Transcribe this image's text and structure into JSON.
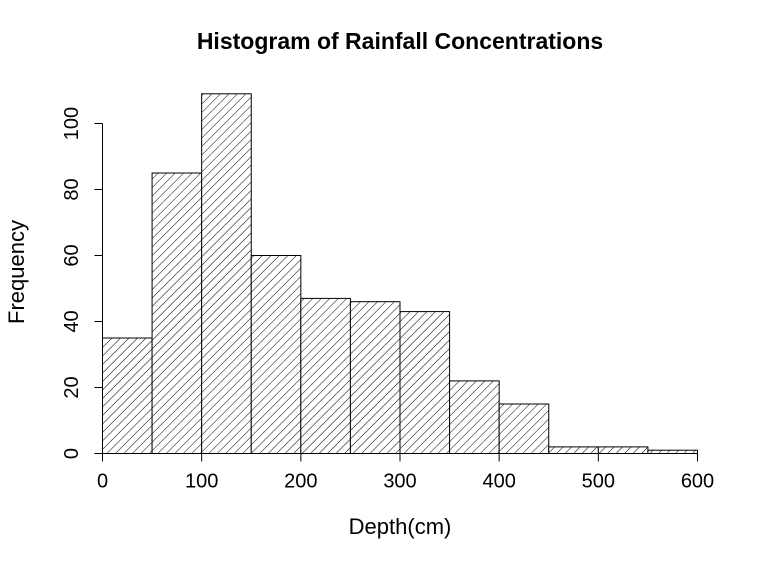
{
  "chart_data": {
    "type": "bar",
    "title": "Histogram of Rainfall Concentrations",
    "xlabel": "Depth(cm)",
    "ylabel": "Frequency",
    "bins": [
      {
        "from": 0,
        "to": 50,
        "count": 35
      },
      {
        "from": 50,
        "to": 100,
        "count": 85
      },
      {
        "from": 100,
        "to": 150,
        "count": 109
      },
      {
        "from": 150,
        "to": 200,
        "count": 60
      },
      {
        "from": 200,
        "to": 250,
        "count": 47
      },
      {
        "from": 250,
        "to": 300,
        "count": 46
      },
      {
        "from": 300,
        "to": 350,
        "count": 43
      },
      {
        "from": 350,
        "to": 400,
        "count": 22
      },
      {
        "from": 400,
        "to": 450,
        "count": 15
      },
      {
        "from": 450,
        "to": 500,
        "count": 2
      },
      {
        "from": 500,
        "to": 550,
        "count": 2
      },
      {
        "from": 550,
        "to": 600,
        "count": 1
      }
    ],
    "xlim": [
      0,
      600
    ],
    "ylim": [
      0,
      100
    ],
    "x_ticks": [
      "0",
      "100",
      "200",
      "300",
      "400",
      "500",
      "600"
    ],
    "y_ticks": [
      "0",
      "20",
      "40",
      "60",
      "80",
      "100"
    ],
    "fill_pattern": "diagonal-hatch",
    "bar_color": "#000000",
    "background": "#ffffff",
    "grid": false,
    "legend": "none"
  }
}
